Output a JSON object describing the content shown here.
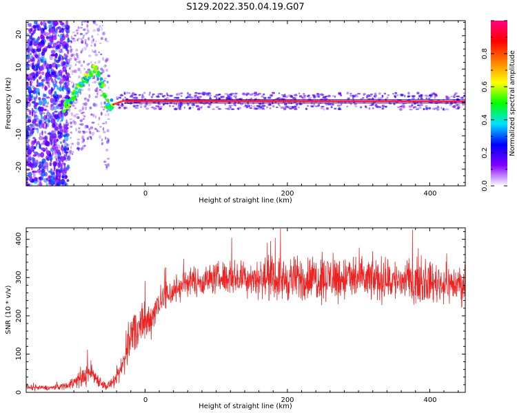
{
  "title": "S129.2022.350.04.19.G07",
  "chart_data": [
    {
      "type": "heatmap",
      "xlabel": "Height of straight line (km)",
      "ylabel": "Frequency (Hz)",
      "xlim": [
        -167,
        450
      ],
      "ylim": [
        -25,
        24.5
      ],
      "x_ticks": [
        "0",
        "200",
        "400"
      ],
      "y_ticks": [
        "-20",
        "-10",
        "0",
        "10",
        "20"
      ],
      "colorbar": {
        "label": "Normalized spectral amplitude",
        "range": [
          0,
          1
        ],
        "ticks": [
          "0.0",
          "0.2",
          "0.4",
          "0.6",
          "0.8"
        ],
        "colors": [
          "#ffffff",
          "#8000ff",
          "#0000ff",
          "#00e0ff",
          "#00ff00",
          "#ffff00",
          "#ff8000",
          "#ff0000",
          "#ff0080"
        ]
      },
      "ridge": [
        {
          "x": -115,
          "y": -2
        },
        {
          "x": -100,
          "y": 2
        },
        {
          "x": -90,
          "y": 5
        },
        {
          "x": -80,
          "y": 8
        },
        {
          "x": -70,
          "y": 10
        },
        {
          "x": -60,
          "y": 5
        },
        {
          "x": -55,
          "y": 0
        },
        {
          "x": -50,
          "y": -1
        },
        {
          "x": -30,
          "y": 0.5
        },
        {
          "x": 450,
          "y": 0.3
        }
      ]
    },
    {
      "type": "line",
      "xlabel": "Height of straight line (km)",
      "ylabel": "SNR (10 * v/v)",
      "xlim": [
        -167,
        450
      ],
      "ylim": [
        0,
        430
      ],
      "x_ticks": [
        "0",
        "200",
        "400"
      ],
      "y_ticks": [
        "0",
        "100",
        "200",
        "300",
        "400"
      ],
      "series": [
        {
          "color": "#ee2222",
          "envelope": [
            {
              "x": -167,
              "mean": 12,
              "spread": 10
            },
            {
              "x": -130,
              "mean": 12,
              "spread": 10
            },
            {
              "x": -110,
              "mean": 18,
              "spread": 15
            },
            {
              "x": -90,
              "mean": 35,
              "spread": 35
            },
            {
              "x": -75,
              "mean": 55,
              "spread": 45
            },
            {
              "x": -70,
              "mean": 40,
              "spread": 30
            },
            {
              "x": -55,
              "mean": 15,
              "spread": 15
            },
            {
              "x": -40,
              "mean": 30,
              "spread": 25
            },
            {
              "x": -30,
              "mean": 80,
              "spread": 60
            },
            {
              "x": -20,
              "mean": 150,
              "spread": 90
            },
            {
              "x": -10,
              "mean": 170,
              "spread": 90
            },
            {
              "x": 0,
              "mean": 175,
              "spread": 80
            },
            {
              "x": 10,
              "mean": 200,
              "spread": 70
            },
            {
              "x": 20,
              "mean": 240,
              "spread": 60
            },
            {
              "x": 40,
              "mean": 265,
              "spread": 60
            },
            {
              "x": 60,
              "mean": 290,
              "spread": 55
            },
            {
              "x": 80,
              "mean": 290,
              "spread": 55
            },
            {
              "x": 100,
              "mean": 300,
              "spread": 60
            },
            {
              "x": 140,
              "mean": 300,
              "spread": 70
            },
            {
              "x": 200,
              "mean": 295,
              "spread": 85
            },
            {
              "x": 260,
              "mean": 300,
              "spread": 90
            },
            {
              "x": 320,
              "mean": 295,
              "spread": 85
            },
            {
              "x": 380,
              "mean": 290,
              "spread": 80
            },
            {
              "x": 450,
              "mean": 280,
              "spread": 70
            }
          ]
        }
      ]
    }
  ]
}
